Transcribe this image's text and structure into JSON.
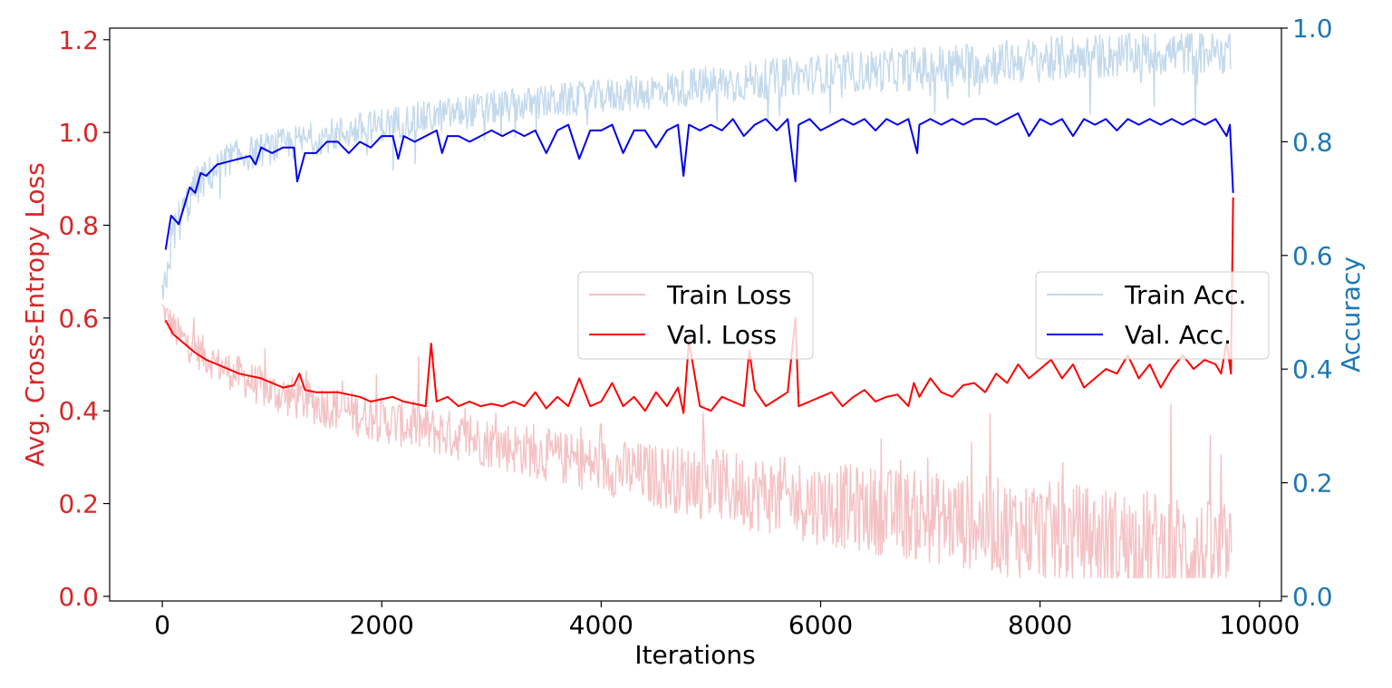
{
  "chart_data": {
    "type": "line",
    "xlabel": "Iterations",
    "ylabel_left": "Avg. Cross-Entropy Loss",
    "ylabel_right": "Accuracy",
    "xlim": [
      -480,
      10200
    ],
    "ylim_left": [
      -0.01,
      1.225
    ],
    "ylim_right": [
      -0.008,
      1.0
    ],
    "x_ticks": [
      0,
      2000,
      4000,
      6000,
      8000,
      10000
    ],
    "x_tick_labels": [
      "0",
      "2000",
      "4000",
      "6000",
      "8000",
      "10000"
    ],
    "y_left_ticks": [
      0.0,
      0.2,
      0.4,
      0.6,
      0.8,
      1.0,
      1.2
    ],
    "y_left_tick_labels": [
      "0.0",
      "0.2",
      "0.4",
      "0.6",
      "0.8",
      "1.0",
      "1.2"
    ],
    "y_right_ticks": [
      0.0,
      0.2,
      0.4,
      0.6,
      0.8,
      1.0
    ],
    "y_right_tick_labels": [
      "0.0",
      "0.2",
      "0.4",
      "0.6",
      "0.8",
      "1.0"
    ],
    "grid": false,
    "colors": {
      "left_axis": "#d62728",
      "right_axis": "#1f77b4",
      "train_loss": "#f4c2c4",
      "val_loss": "#ff0000",
      "train_acc": "#c3d9ec",
      "val_acc": "#0000ee"
    },
    "legends": [
      {
        "placement": "center",
        "entries": [
          {
            "label": "Train Loss",
            "color": "#f4c2c4"
          },
          {
            "label": "Val. Loss",
            "color": "#ff0000"
          }
        ]
      },
      {
        "placement": "center-right",
        "entries": [
          {
            "label": "Train Acc.",
            "color": "#c3d9ec"
          },
          {
            "label": "Val. Acc.",
            "color": "#0000ee"
          }
        ]
      }
    ],
    "series": [
      {
        "name": "Train Loss",
        "axis": "left",
        "style": "noisy",
        "x": [
          0,
          150,
          500,
          1000,
          2000,
          3000,
          4000,
          5000,
          6000,
          7000,
          8000,
          9000,
          9750
        ],
        "trend": [
          0.62,
          0.56,
          0.5,
          0.44,
          0.38,
          0.33,
          0.28,
          0.24,
          0.2,
          0.17,
          0.14,
          0.11,
          0.08
        ],
        "noise": [
          0.03,
          0.04,
          0.04,
          0.045,
          0.05,
          0.055,
          0.06,
          0.08,
          0.09,
          0.1,
          0.11,
          0.12,
          0.12
        ]
      },
      {
        "name": "Train Acc.",
        "axis": "right",
        "style": "noisy",
        "x": [
          0,
          100,
          300,
          600,
          1000,
          2000,
          3000,
          4000,
          5000,
          6000,
          7000,
          8000,
          9000,
          9750
        ],
        "trend": [
          0.52,
          0.64,
          0.72,
          0.77,
          0.79,
          0.83,
          0.86,
          0.88,
          0.9,
          0.92,
          0.93,
          0.945,
          0.955,
          0.96
        ],
        "noise": [
          0.03,
          0.04,
          0.035,
          0.03,
          0.03,
          0.03,
          0.03,
          0.03,
          0.035,
          0.035,
          0.04,
          0.04,
          0.04,
          0.04
        ]
      },
      {
        "name": "Val. Loss",
        "axis": "left",
        "x": [
          30,
          100,
          200,
          300,
          400,
          500,
          600,
          700,
          800,
          900,
          1000,
          1100,
          1200,
          1250,
          1300,
          1400,
          1500,
          1600,
          1700,
          1800,
          1900,
          2000,
          2100,
          2200,
          2300,
          2400,
          2450,
          2500,
          2600,
          2700,
          2800,
          2900,
          3000,
          3100,
          3200,
          3300,
          3400,
          3500,
          3600,
          3700,
          3800,
          3900,
          4000,
          4100,
          4200,
          4300,
          4400,
          4500,
          4600,
          4700,
          4750,
          4800,
          4900,
          5000,
          5100,
          5200,
          5300,
          5350,
          5400,
          5500,
          5600,
          5700,
          5770,
          5800,
          5900,
          6000,
          6100,
          6200,
          6300,
          6400,
          6500,
          6600,
          6700,
          6800,
          6850,
          6900,
          7000,
          7100,
          7200,
          7300,
          7400,
          7500,
          7600,
          7700,
          7800,
          7900,
          8000,
          8100,
          8200,
          8300,
          8400,
          8500,
          8600,
          8700,
          8800,
          8900,
          9000,
          9100,
          9200,
          9300,
          9400,
          9500,
          9600,
          9650,
          9700,
          9740,
          9760
        ],
        "y": [
          0.595,
          0.565,
          0.545,
          0.525,
          0.51,
          0.5,
          0.49,
          0.48,
          0.475,
          0.47,
          0.46,
          0.45,
          0.455,
          0.48,
          0.445,
          0.44,
          0.44,
          0.44,
          0.435,
          0.43,
          0.42,
          0.425,
          0.43,
          0.42,
          0.415,
          0.41,
          0.545,
          0.42,
          0.43,
          0.41,
          0.42,
          0.41,
          0.415,
          0.41,
          0.42,
          0.41,
          0.44,
          0.405,
          0.43,
          0.41,
          0.47,
          0.41,
          0.42,
          0.46,
          0.41,
          0.43,
          0.4,
          0.44,
          0.41,
          0.45,
          0.395,
          0.55,
          0.41,
          0.4,
          0.43,
          0.42,
          0.41,
          0.53,
          0.445,
          0.41,
          0.425,
          0.44,
          0.6,
          0.41,
          0.42,
          0.43,
          0.44,
          0.41,
          0.43,
          0.445,
          0.42,
          0.43,
          0.435,
          0.41,
          0.46,
          0.43,
          0.47,
          0.44,
          0.43,
          0.455,
          0.46,
          0.44,
          0.48,
          0.46,
          0.5,
          0.47,
          0.49,
          0.51,
          0.47,
          0.5,
          0.45,
          0.47,
          0.49,
          0.48,
          0.52,
          0.47,
          0.5,
          0.45,
          0.49,
          0.52,
          0.49,
          0.51,
          0.5,
          0.48,
          0.55,
          0.48,
          0.86
        ]
      },
      {
        "name": "Val. Acc.",
        "axis": "right",
        "x": [
          30,
          80,
          150,
          250,
          300,
          350,
          400,
          500,
          600,
          700,
          800,
          850,
          900,
          1000,
          1100,
          1200,
          1230,
          1300,
          1400,
          1500,
          1600,
          1700,
          1800,
          1900,
          2000,
          2100,
          2150,
          2200,
          2300,
          2400,
          2500,
          2550,
          2600,
          2700,
          2800,
          2900,
          3000,
          3100,
          3200,
          3300,
          3400,
          3500,
          3600,
          3700,
          3800,
          3900,
          4000,
          4100,
          4200,
          4300,
          4400,
          4500,
          4600,
          4700,
          4750,
          4800,
          4900,
          5000,
          5100,
          5200,
          5300,
          5400,
          5500,
          5600,
          5700,
          5770,
          5800,
          5900,
          6000,
          6100,
          6200,
          6300,
          6400,
          6500,
          6600,
          6700,
          6800,
          6880,
          6900,
          7000,
          7100,
          7200,
          7300,
          7400,
          7500,
          7600,
          7700,
          7800,
          7900,
          8000,
          8100,
          8200,
          8300,
          8400,
          8500,
          8600,
          8700,
          8800,
          8900,
          9000,
          9100,
          9200,
          9300,
          9400,
          9500,
          9600,
          9700,
          9730,
          9760
        ],
        "y": [
          0.61,
          0.67,
          0.655,
          0.72,
          0.71,
          0.745,
          0.74,
          0.76,
          0.765,
          0.77,
          0.775,
          0.76,
          0.79,
          0.78,
          0.79,
          0.79,
          0.73,
          0.78,
          0.78,
          0.8,
          0.8,
          0.78,
          0.8,
          0.79,
          0.81,
          0.81,
          0.77,
          0.81,
          0.8,
          0.81,
          0.82,
          0.78,
          0.81,
          0.81,
          0.8,
          0.81,
          0.82,
          0.81,
          0.82,
          0.81,
          0.82,
          0.78,
          0.82,
          0.83,
          0.77,
          0.82,
          0.82,
          0.83,
          0.78,
          0.82,
          0.82,
          0.79,
          0.82,
          0.83,
          0.74,
          0.83,
          0.82,
          0.83,
          0.82,
          0.84,
          0.81,
          0.83,
          0.84,
          0.82,
          0.84,
          0.73,
          0.83,
          0.84,
          0.82,
          0.83,
          0.84,
          0.83,
          0.84,
          0.82,
          0.84,
          0.83,
          0.84,
          0.78,
          0.83,
          0.84,
          0.83,
          0.84,
          0.83,
          0.84,
          0.84,
          0.83,
          0.84,
          0.85,
          0.81,
          0.84,
          0.83,
          0.84,
          0.81,
          0.84,
          0.83,
          0.84,
          0.82,
          0.84,
          0.83,
          0.84,
          0.83,
          0.84,
          0.83,
          0.84,
          0.83,
          0.84,
          0.81,
          0.83,
          0.71
        ]
      }
    ]
  }
}
